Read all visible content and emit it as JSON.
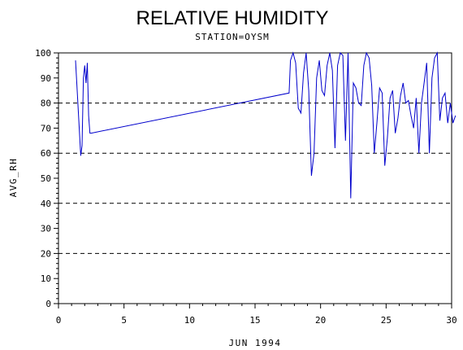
{
  "chart_data": {
    "type": "line",
    "title": "RELATIVE HUMIDITY",
    "subtitle": "STATION=OYSM",
    "xlabel": "JUN 1994",
    "ylabel": "AVG_RH",
    "xlim": [
      0,
      30
    ],
    "ylim": [
      0,
      100
    ],
    "x_ticks": [
      0,
      5,
      10,
      15,
      20,
      25,
      30
    ],
    "y_ticks": [
      0,
      10,
      20,
      30,
      40,
      50,
      60,
      70,
      80,
      90,
      100
    ],
    "grid": "horizontal dashed at 0, 20, 40, 60, 80, 100",
    "line_color": "#0000cc",
    "series": [
      {
        "x": [
          1.3,
          1.5,
          1.7,
          1.8,
          1.9,
          2.0,
          2.1,
          2.2,
          2.3,
          2.4,
          2.5,
          17.6,
          17.7,
          17.9,
          18.1,
          18.3,
          18.5,
          18.7,
          18.9,
          19.1,
          19.3,
          19.5,
          19.7,
          19.9,
          20.1,
          20.3,
          20.5,
          20.7,
          20.9,
          21.1,
          21.3,
          21.5,
          21.7,
          21.9,
          22.1,
          22.3,
          22.5,
          22.7,
          22.9,
          23.1,
          23.3,
          23.5,
          23.7,
          23.9,
          24.1,
          24.3,
          24.5,
          24.7,
          24.9,
          25.1,
          25.3,
          25.5,
          25.7,
          25.9,
          26.1,
          26.3,
          26.5,
          26.7,
          26.9,
          27.1,
          27.3,
          27.5,
          27.7,
          27.9,
          28.1,
          28.3,
          28.5,
          28.7,
          28.9,
          29.1,
          29.3,
          29.5,
          29.7,
          29.9,
          30.1,
          30.3
        ],
        "y": [
          97,
          78,
          59,
          63,
          90,
          95,
          88,
          96,
          75,
          68,
          68,
          84,
          97,
          100,
          96,
          78,
          76,
          92,
          100,
          85,
          51,
          60,
          90,
          97,
          85,
          83,
          95,
          100,
          93,
          62,
          95,
          100,
          99,
          65,
          100,
          42,
          88,
          86,
          80,
          79,
          95,
          100,
          98,
          87,
          60,
          72,
          86,
          84,
          55,
          66,
          82,
          85,
          68,
          74,
          83,
          88,
          80,
          81,
          75,
          70,
          82,
          60,
          80,
          88,
          96,
          60,
          90,
          98,
          100,
          73,
          82,
          84,
          72,
          80,
          72,
          75
        ]
      }
    ]
  }
}
